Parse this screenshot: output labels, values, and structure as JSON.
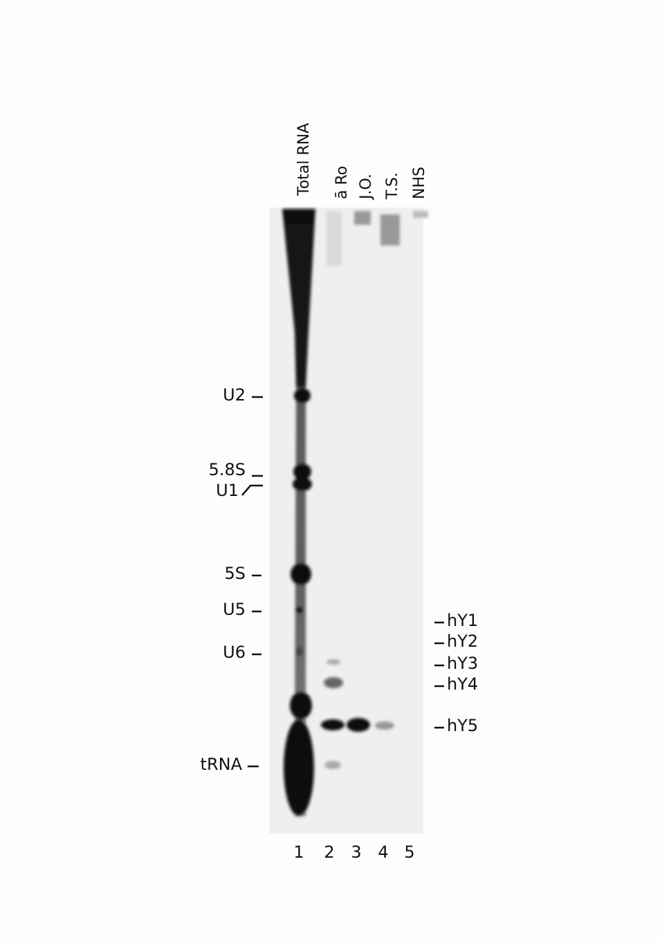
{
  "lane_labels": [
    "Total RNA",
    "ā Ro",
    "J.O.",
    "T.S.",
    "NHS"
  ],
  "lane_numbers": [
    "1",
    "2",
    "3",
    "4",
    "5"
  ],
  "left_markers": [
    "U2",
    "5.8S",
    "U1",
    "5S",
    "U5",
    "U6",
    "tRNA"
  ],
  "right_markers": [
    "hY1",
    "hY2",
    "hY3",
    "hY4",
    "hY5"
  ]
}
